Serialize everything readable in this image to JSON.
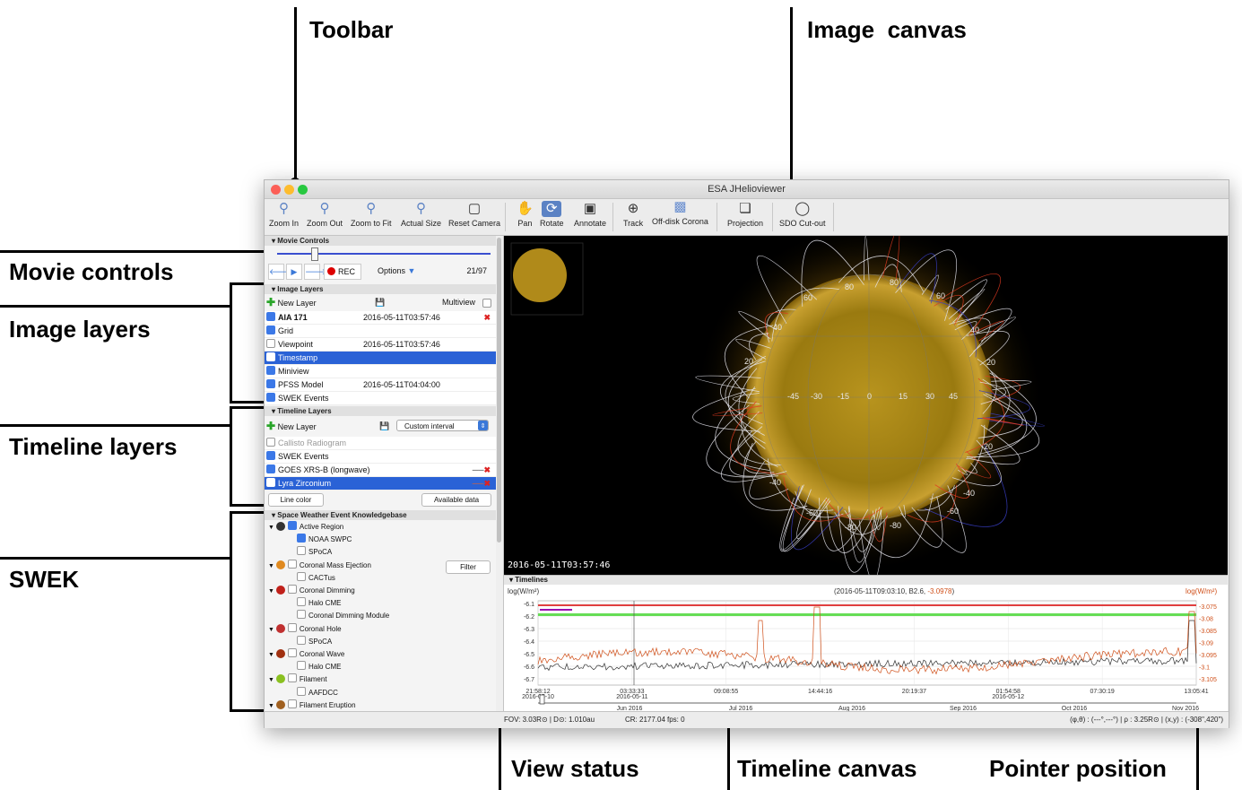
{
  "callouts": {
    "toolbar": "Toolbar",
    "image_canvas": "Image  canvas",
    "movie_controls": "Movie controls",
    "image_layers": "Image layers",
    "timeline_layers": "Timeline layers",
    "swek": "SWEK",
    "view_status": "View status",
    "timeline_canvas": "Timeline canvas",
    "pointer_position": "Pointer position"
  },
  "window": {
    "title": "ESA JHelioviewer"
  },
  "toolbar": {
    "buttons": [
      {
        "label": "Zoom In",
        "icon": "zoom-in-icon"
      },
      {
        "label": "Zoom Out",
        "icon": "zoom-out-icon"
      },
      {
        "label": "Zoom to Fit",
        "icon": "zoom-fit-icon"
      },
      {
        "label": "Actual Size",
        "icon": "actual-size-icon"
      },
      {
        "label": "Reset Camera",
        "icon": "reset-camera-icon"
      },
      {
        "label": "Pan",
        "icon": "hand-icon"
      },
      {
        "label": "Rotate",
        "icon": "rotate-icon"
      },
      {
        "label": "Annotate",
        "icon": "annotate-icon"
      },
      {
        "label": "Track",
        "icon": "crosshair-icon"
      },
      {
        "label": "Off-disk Corona",
        "icon": "corona-icon"
      },
      {
        "label": "Projection",
        "icon": "cube-icon"
      },
      {
        "label": "SDO Cut-out",
        "icon": "cutout-icon"
      }
    ]
  },
  "movie": {
    "section": "Movie Controls",
    "rec": "REC",
    "options": "Options",
    "frame": "21/97"
  },
  "image_layers": {
    "section": "Image Layers",
    "new_layer": "New Layer",
    "multiview": "Multiview",
    "rows": [
      {
        "name": "AIA 171",
        "time": "2016-05-11T03:57:46"
      },
      {
        "name": "Grid",
        "time": ""
      },
      {
        "name": "Viewpoint",
        "time": "2016-05-11T03:57:46"
      },
      {
        "name": "Timestamp",
        "time": ""
      },
      {
        "name": "Miniview",
        "time": ""
      },
      {
        "name": "PFSS Model",
        "time": "2016-05-11T04:04:00"
      },
      {
        "name": "SWEK Events",
        "time": ""
      }
    ]
  },
  "timeline_layers": {
    "section": "Timeline Layers",
    "new_layer": "New Layer",
    "interval": "Custom interval",
    "rows": [
      "Callisto Radiogram",
      "SWEK Events",
      "GOES XRS-B (longwave)",
      "Lyra Zirconium"
    ],
    "line_color": "Line color",
    "available_data": "Available data"
  },
  "swek": {
    "section": "Space Weather Event Knowledgebase",
    "filter": "Filter",
    "items": [
      {
        "label": "Active Region",
        "level": 0,
        "checked": true
      },
      {
        "label": "NOAA SWPC",
        "level": 1,
        "checked": true
      },
      {
        "label": "SPoCA",
        "level": 1,
        "checked": false
      },
      {
        "label": "Coronal Mass Ejection",
        "level": 0,
        "checked": false
      },
      {
        "label": "CACTus",
        "level": 1,
        "checked": false
      },
      {
        "label": "Coronal Dimming",
        "level": 0,
        "checked": false
      },
      {
        "label": "Halo CME",
        "level": 1,
        "checked": false
      },
      {
        "label": "Coronal Dimming Module",
        "level": 1,
        "checked": false
      },
      {
        "label": "Coronal Hole",
        "level": 0,
        "checked": false
      },
      {
        "label": "SPoCA",
        "level": 1,
        "checked": false
      },
      {
        "label": "Coronal Wave",
        "level": 0,
        "checked": false
      },
      {
        "label": "Halo CME",
        "level": 1,
        "checked": false
      },
      {
        "label": "Filament",
        "level": 0,
        "checked": false
      },
      {
        "label": "AAFDCC",
        "level": 1,
        "checked": false
      },
      {
        "label": "Filament Eruption",
        "level": 0,
        "checked": false
      }
    ]
  },
  "canvas": {
    "timestamp": "2016-05-11T03:57:46",
    "grid_labels": [
      "80",
      "80",
      "60",
      "60",
      "40",
      "40",
      "20",
      "20",
      "-45",
      "-30",
      "-15",
      "0",
      "15",
      "30",
      "45",
      "-20",
      "-40",
      "-40",
      "-60",
      "-60",
      "-80",
      "-80"
    ]
  },
  "timelines": {
    "section": "Timelines",
    "left_unit": "log(W/m²)",
    "right_unit": "log(W/m²)",
    "readout": "(2016-05-11T09:03:10, B2.6, ",
    "readout_red": "-3.0978",
    "readout_end": ")",
    "left_ticks": [
      "-6.1",
      "-6.2",
      "-6.3",
      "-6.4",
      "-6.5",
      "-6.6",
      "-6.7"
    ],
    "right_ticks": [
      "-3.075",
      "-3.08",
      "-3.085",
      "-3.09",
      "-3.095",
      "-3.1",
      "-3.105"
    ],
    "time_ticks": [
      "21:58:12",
      "03:33:33",
      "09:08:55",
      "14:44:16",
      "20:19:37",
      "01:54:58",
      "07:30:19",
      "13:05:41"
    ],
    "date_ticks": [
      "2016-05-10",
      "2016-05-11",
      "2016-05-12"
    ],
    "month_ticks": [
      "Jun 2016",
      "Jul 2016",
      "Aug 2016",
      "Sep 2016",
      "Oct 2016",
      "Nov 2016"
    ]
  },
  "status": {
    "fov": "FOV: 3.03R⊙ | D⊙: 1.010au",
    "cr": "CR: 2177.04",
    "fps": "fps: 0",
    "pointer": "(φ,θ) : (---°,---°) | ρ : 3.25R⊙ | (x,y) : (-308\",420\")"
  }
}
